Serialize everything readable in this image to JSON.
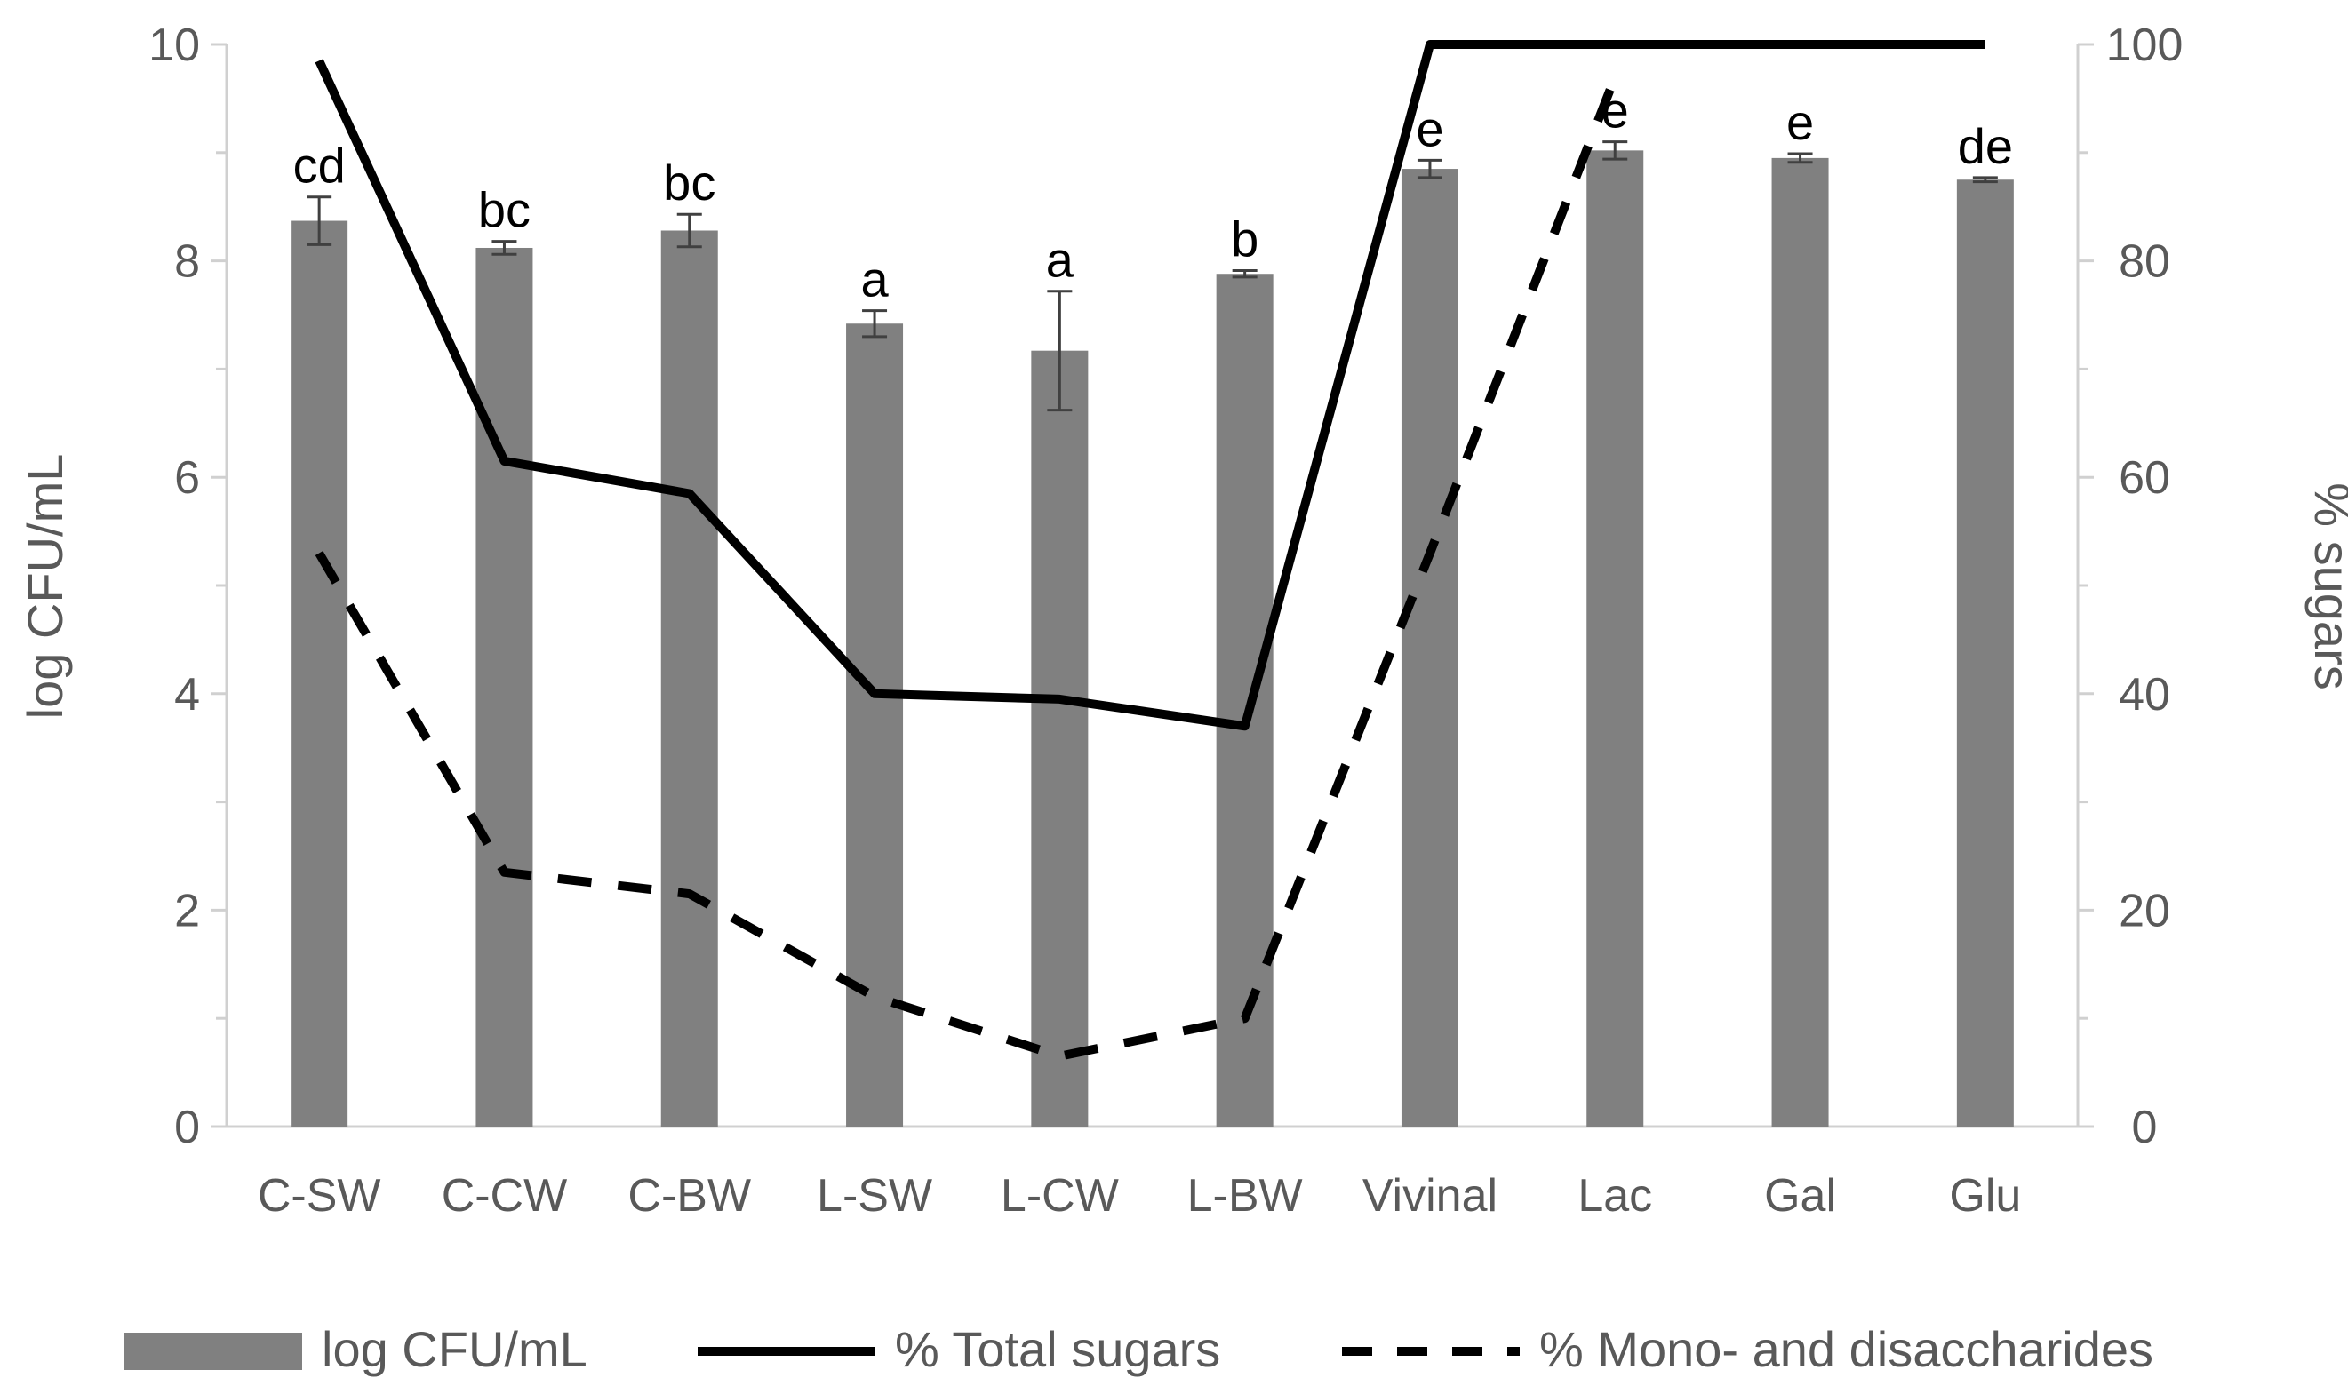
{
  "chart_data": {
    "type": "bar",
    "categories": [
      "C-SW",
      "C-CW",
      "C-BW",
      "L-SW",
      "L-CW",
      "L-BW",
      "Vivinal",
      "Lac",
      "Gal",
      "Glu"
    ],
    "y_left": {
      "label": "log CFU/mL",
      "lim": [
        0,
        10
      ],
      "ticks": [
        0,
        2,
        4,
        6,
        8,
        10
      ]
    },
    "y_right": {
      "label": "% sugars",
      "lim": [
        0,
        100
      ],
      "ticks": [
        0,
        20,
        40,
        60,
        80,
        100
      ]
    },
    "bars": {
      "name": "log CFU/mL",
      "values": [
        8.37,
        8.12,
        8.28,
        7.42,
        7.17,
        7.88,
        8.85,
        9.02,
        8.95,
        8.75
      ],
      "errors": [
        0.22,
        0.06,
        0.15,
        0.12,
        0.55,
        0.03,
        0.08,
        0.08,
        0.04,
        0.02
      ],
      "labels": [
        "cd",
        "bc",
        "bc",
        "a",
        "a",
        "b",
        "e",
        "e",
        "e",
        "de"
      ],
      "color": "#808080"
    },
    "series": [
      {
        "name": "% Total sugars",
        "axis": "right",
        "style": "solid",
        "values": [
          98.5,
          61.5,
          58.5,
          40,
          39.5,
          37,
          100,
          100,
          100,
          100
        ],
        "color": "#000000"
      },
      {
        "name": "% Mono- and disaccharides",
        "axis": "right",
        "style": "dashed",
        "values": [
          53,
          23.5,
          21.5,
          12,
          6.5,
          10,
          53,
          97,
          null,
          null
        ],
        "color": "#000000"
      }
    ],
    "legend": {
      "position": "bottom"
    }
  }
}
